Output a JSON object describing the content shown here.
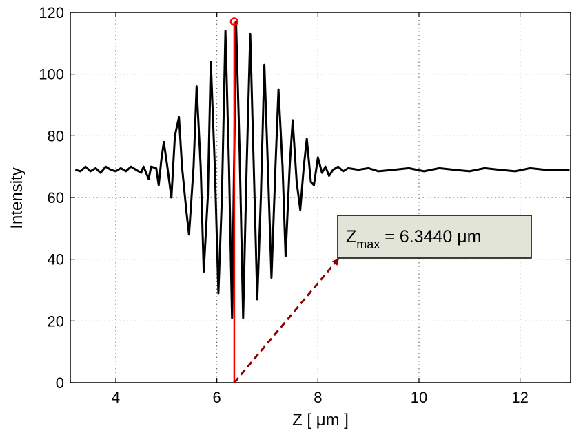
{
  "chart_data": {
    "type": "line",
    "title": "",
    "xlabel": "Z [ μm ]",
    "ylabel": "Intensity",
    "xlim": [
      3.1,
      13.0
    ],
    "ylim": [
      0,
      120
    ],
    "xticks": [
      4,
      6,
      8,
      10,
      12
    ],
    "yticks": [
      0,
      20,
      40,
      60,
      80,
      100,
      120
    ],
    "grid": true,
    "legend": "none",
    "series": [
      {
        "color": "#000000",
        "x": [
          3.2,
          3.3,
          3.4,
          3.5,
          3.6,
          3.7,
          3.8,
          3.9,
          4.0,
          4.1,
          4.2,
          4.3,
          4.4,
          4.5,
          4.55,
          4.65,
          4.7,
          4.8,
          4.85,
          4.9,
          4.95,
          5.02,
          5.1,
          5.17,
          5.25,
          5.31,
          5.4,
          5.45,
          5.54,
          5.6,
          5.68,
          5.74,
          5.82,
          5.88,
          5.96,
          6.03,
          6.1,
          6.17,
          6.24,
          6.3,
          6.34,
          6.38,
          6.45,
          6.52,
          6.59,
          6.66,
          6.73,
          6.8,
          6.87,
          6.94,
          7.01,
          7.08,
          7.16,
          7.22,
          7.3,
          7.36,
          7.44,
          7.5,
          7.58,
          7.65,
          7.72,
          7.78,
          7.86,
          7.92,
          8.0,
          8.08,
          8.15,
          8.22,
          8.3,
          8.4,
          8.5,
          8.6,
          8.8,
          9.0,
          9.2,
          9.5,
          9.8,
          10.1,
          10.4,
          10.7,
          11.0,
          11.3,
          11.6,
          11.9,
          12.2,
          12.5,
          12.8,
          12.98
        ],
        "y": [
          69,
          68.5,
          70,
          68.5,
          69.5,
          68,
          70,
          69,
          68.5,
          69.5,
          68.5,
          70,
          69,
          68,
          70,
          66,
          70,
          69.5,
          64,
          72,
          78,
          70,
          60,
          80,
          86,
          70,
          55,
          48,
          70,
          96,
          70,
          36,
          60,
          104,
          70,
          29,
          60,
          114,
          70,
          21,
          70,
          117,
          75,
          21,
          70,
          113,
          70,
          27,
          60,
          103,
          70,
          34,
          70,
          95,
          70,
          41,
          70,
          85,
          65,
          56,
          70,
          79,
          65,
          64,
          73,
          68,
          70,
          67,
          69,
          70,
          68.5,
          69.5,
          69,
          69.5,
          68.5,
          69,
          69.5,
          68.5,
          69.5,
          69,
          68.5,
          69.5,
          69,
          68.5,
          69.5,
          69,
          69,
          69
        ]
      }
    ],
    "peak": {
      "x": 6.344,
      "y": 117,
      "color": "#ff0000"
    },
    "annotation": {
      "text_main": "Z",
      "text_sub": "max",
      "text_rest": " = 6.3440 μm",
      "arrow_color": "#8b0000",
      "box_fill": "#e2e4d8",
      "arrow_from": {
        "x": 6.344,
        "y": 0
      },
      "arrow_to": {
        "x": 8.4,
        "y": 40
      }
    }
  }
}
